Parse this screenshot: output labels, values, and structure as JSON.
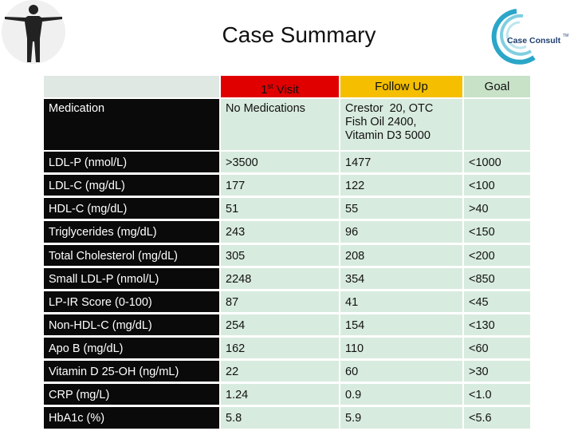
{
  "header": {
    "title": "Case Summary",
    "logo": {
      "text": "Case Consult",
      "mark": "TM"
    }
  },
  "table": {
    "columns": [
      {
        "main": "1",
        "sup": "st",
        "rest": " Visit"
      },
      "Follow Up",
      "Goal"
    ],
    "rows": [
      {
        "label": "Medication",
        "visit1": "No Medications",
        "followup": [
          "Crestor  20, OTC",
          "Fish Oil 2400,",
          "Vitamin D3 5000"
        ]
      },
      {
        "label": "LDL-P (nmol/L)",
        "visit1": ">3500",
        "followup": "1477",
        "goal": "<1000"
      },
      {
        "label": "LDL-C (mg/dL)",
        "visit1": "177",
        "followup": "122",
        "goal": "<100"
      },
      {
        "label": "HDL-C (mg/dL)",
        "visit1": "51",
        "followup": "55",
        "goal": ">40"
      },
      {
        "label": "Triglycerides (mg/dL)",
        "visit1": "243",
        "followup": "96",
        "goal": "<150"
      },
      {
        "label": "Total Cholesterol (mg/dL)",
        "visit1": "305",
        "followup": "208",
        "goal": "<200"
      },
      {
        "label": "Small LDL-P (nmol/L)",
        "visit1": "2248",
        "followup": "354",
        "goal": "<850"
      },
      {
        "label": "LP-IR Score (0-100)",
        "visit1": "87",
        "followup": "41",
        "goal": "<45"
      },
      {
        "label": "Non-HDL-C (mg/dL)",
        "visit1": "254",
        "followup": "154",
        "goal": "<130"
      },
      {
        "label": "Apo B (mg/dL)",
        "visit1": "162",
        "followup": "110",
        "goal": "<60"
      },
      {
        "label": "Vitamin D 25-OH (ng/mL)",
        "visit1": "22",
        "followup": "60",
        "goal": ">30"
      },
      {
        "label": "CRP (mg/L)",
        "visit1": "1.24",
        "followup": "0.9",
        "goal": "<1.0"
      },
      {
        "label": "HbA1c (%)",
        "visit1": "5.8",
        "followup": "5.9",
        "goal": "<5.6"
      }
    ]
  }
}
